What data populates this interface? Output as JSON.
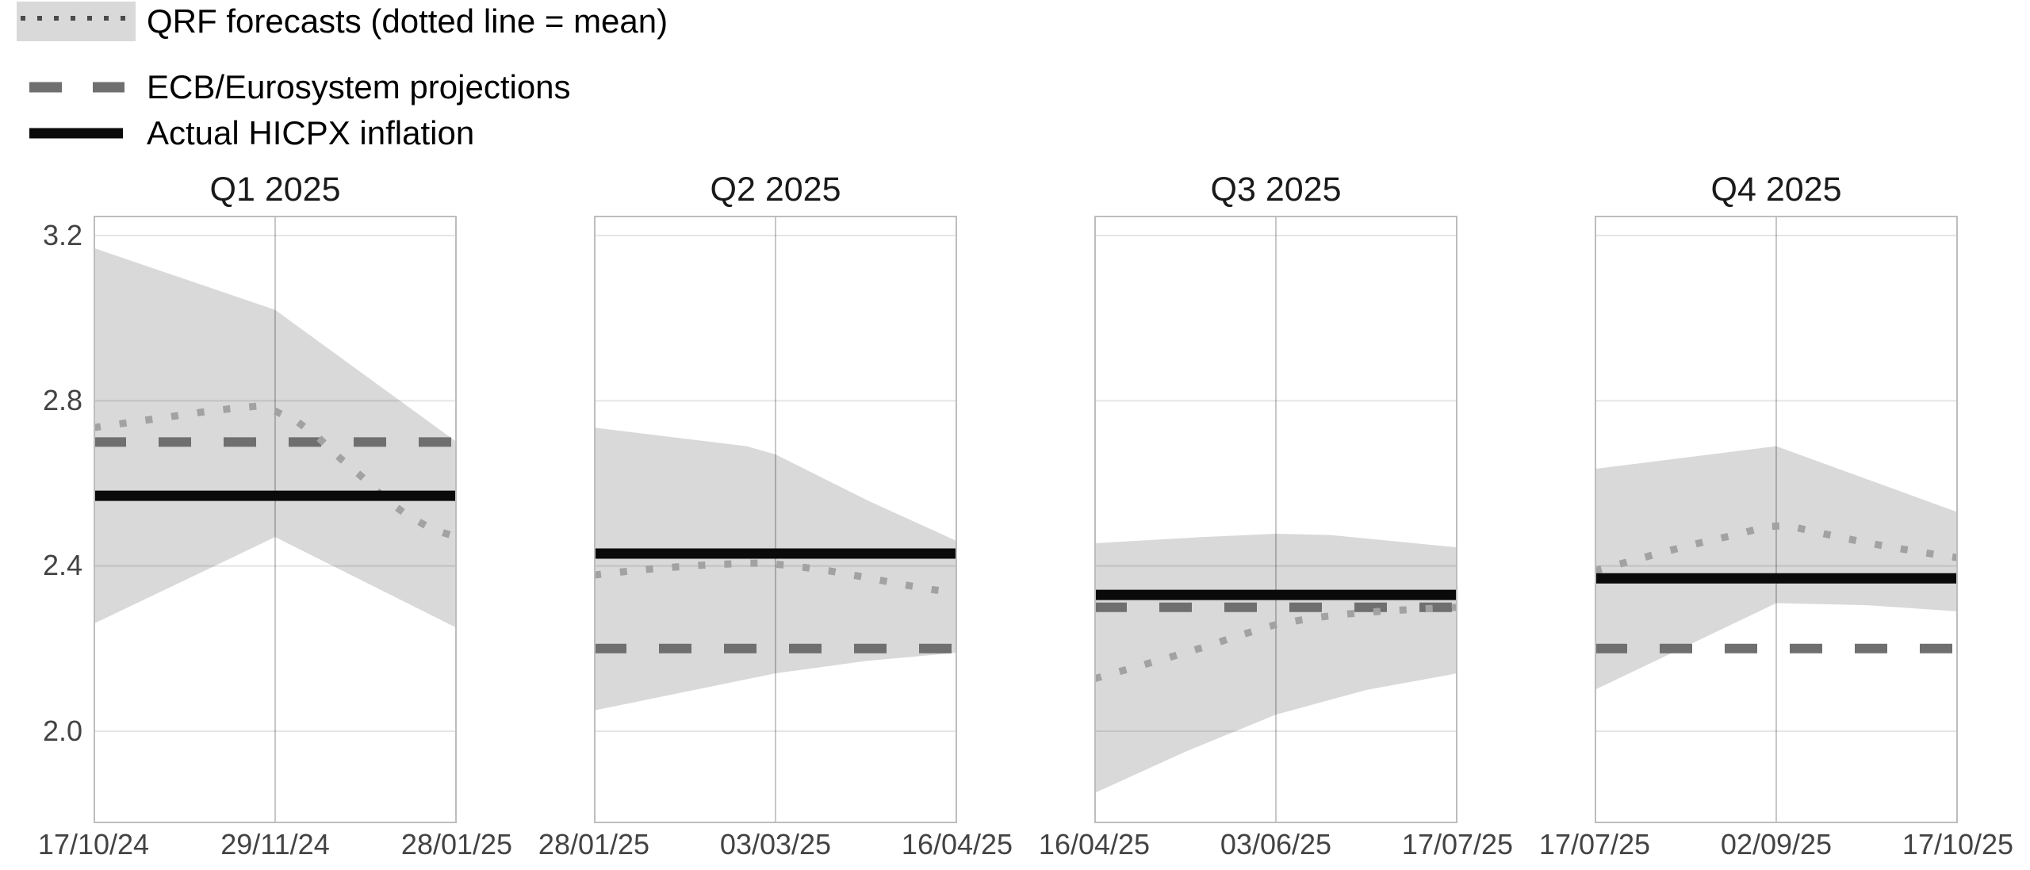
{
  "legend": {
    "items": [
      {
        "key_icon": "qrf-band-key",
        "label": "QRF forecasts (dotted line = mean)"
      },
      {
        "key_icon": "ecb-dashed-line-key",
        "label": "ECB/Eurosystem projections"
      },
      {
        "key_icon": "actual-solid-line-key",
        "label": "Actual HICPX inflation"
      }
    ]
  },
  "colors": {
    "band": "#d9d9d9",
    "qrf_mean": "#a2a2a2",
    "ecb": "#6f6f6f",
    "actual": "#0a0a0a",
    "grid_h": "rgba(0,0,0,0.10)",
    "grid_v": "rgba(0,0,0,0.22)",
    "border": "#bdbdbd",
    "legend_dotted": "#4a4a4a"
  },
  "y_axis": {
    "ticks": [
      "3.2",
      "2.8",
      "2.4",
      "2.0"
    ],
    "range_bottom": "1.78",
    "range_top": "3.25"
  },
  "chart_data": {
    "type": "line",
    "layout": "4 facet panels (quarterly forecast windows), shared y axis, legend top-left, gridlines on",
    "ylabel": "",
    "xlabel": "",
    "y_ticks": [
      "3.2",
      "2.8",
      "2.4",
      "2.0"
    ],
    "ylim": [
      1.78,
      3.25
    ],
    "series_note": "x values are fractions of each panel's date window; band = QRF forecast interval; ecb_projection and actual_hicpx are constant per panel",
    "panels": [
      {
        "title": "Q1 2025",
        "x_ticks": [
          "17/10/24",
          "29/11/24",
          "28/01/25"
        ],
        "band_upper": [
          [
            0,
            3.17
          ],
          [
            0.5,
            3.02
          ],
          [
            0.75,
            2.86
          ],
          [
            1,
            2.7
          ]
        ],
        "band_lower": [
          [
            0,
            2.26
          ],
          [
            0.5,
            2.47
          ],
          [
            1,
            2.25
          ]
        ],
        "qrf_mean": [
          [
            0,
            2.735
          ],
          [
            0.08,
            2.745
          ],
          [
            0.16,
            2.755
          ],
          [
            0.24,
            2.765
          ],
          [
            0.32,
            2.775
          ],
          [
            0.4,
            2.783
          ],
          [
            0.45,
            2.787
          ],
          [
            0.5,
            2.775
          ],
          [
            0.56,
            2.75
          ],
          [
            0.62,
            2.71
          ],
          [
            0.68,
            2.66
          ],
          [
            0.74,
            2.615
          ],
          [
            0.8,
            2.565
          ],
          [
            0.86,
            2.525
          ],
          [
            0.93,
            2.49
          ],
          [
            1,
            2.47
          ]
        ],
        "ecb_projection": 2.7,
        "actual_hicpx": 2.57
      },
      {
        "title": "Q2 2025",
        "x_ticks": [
          "28/01/25",
          "03/03/25",
          "16/04/25"
        ],
        "band_upper": [
          [
            0,
            2.735
          ],
          [
            0.42,
            2.69
          ],
          [
            0.5,
            2.67
          ],
          [
            0.75,
            2.56
          ],
          [
            1,
            2.46
          ]
        ],
        "band_lower": [
          [
            0,
            2.05
          ],
          [
            0.5,
            2.14
          ],
          [
            0.75,
            2.17
          ],
          [
            1,
            2.19
          ]
        ],
        "qrf_mean": [
          [
            0,
            2.378
          ],
          [
            0.1,
            2.388
          ],
          [
            0.2,
            2.396
          ],
          [
            0.3,
            2.402
          ],
          [
            0.4,
            2.406
          ],
          [
            0.47,
            2.407
          ],
          [
            0.55,
            2.4
          ],
          [
            0.65,
            2.388
          ],
          [
            0.75,
            2.372
          ],
          [
            0.85,
            2.355
          ],
          [
            0.93,
            2.343
          ],
          [
            1,
            2.335
          ]
        ],
        "ecb_projection": 2.2,
        "actual_hicpx": 2.43
      },
      {
        "title": "Q3 2025",
        "x_ticks": [
          "16/04/25",
          "03/06/25",
          "17/07/25"
        ],
        "band_upper": [
          [
            0,
            2.455
          ],
          [
            0.3,
            2.47
          ],
          [
            0.5,
            2.478
          ],
          [
            0.65,
            2.475
          ],
          [
            1,
            2.445
          ]
        ],
        "band_lower": [
          [
            0,
            1.85
          ],
          [
            0.25,
            1.95
          ],
          [
            0.5,
            2.04
          ],
          [
            0.75,
            2.1
          ],
          [
            1,
            2.14
          ]
        ],
        "qrf_mean": [
          [
            0,
            2.127
          ],
          [
            0.1,
            2.152
          ],
          [
            0.2,
            2.177
          ],
          [
            0.3,
            2.203
          ],
          [
            0.4,
            2.232
          ],
          [
            0.5,
            2.258
          ],
          [
            0.6,
            2.274
          ],
          [
            0.7,
            2.284
          ],
          [
            0.8,
            2.291
          ],
          [
            0.9,
            2.296
          ],
          [
            1,
            2.3
          ]
        ],
        "ecb_projection": 2.3,
        "actual_hicpx": 2.33
      },
      {
        "title": "Q4 2025",
        "x_ticks": [
          "17/07/25",
          "02/09/25",
          "17/10/25"
        ],
        "band_upper": [
          [
            0,
            2.635
          ],
          [
            0.5,
            2.69
          ],
          [
            1,
            2.53
          ]
        ],
        "band_lower": [
          [
            0,
            2.1
          ],
          [
            0.5,
            2.31
          ],
          [
            0.75,
            2.305
          ],
          [
            1,
            2.29
          ]
        ],
        "qrf_mean": [
          [
            0,
            2.388
          ],
          [
            0.1,
            2.412
          ],
          [
            0.2,
            2.436
          ],
          [
            0.3,
            2.458
          ],
          [
            0.4,
            2.478
          ],
          [
            0.47,
            2.495
          ],
          [
            0.53,
            2.498
          ],
          [
            0.6,
            2.484
          ],
          [
            0.7,
            2.465
          ],
          [
            0.8,
            2.448
          ],
          [
            0.9,
            2.433
          ],
          [
            1,
            2.42
          ]
        ],
        "ecb_projection": 2.2,
        "actual_hicpx": 2.37
      }
    ]
  }
}
